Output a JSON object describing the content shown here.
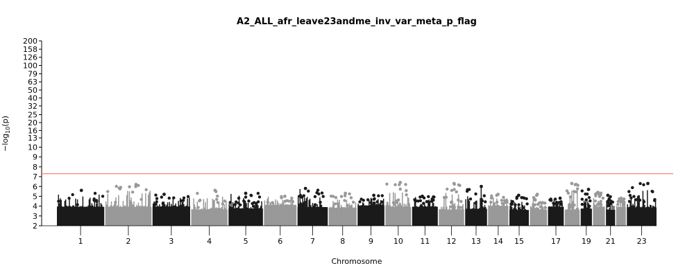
{
  "chart_data": {
    "type": "scatter",
    "title": "A2_ALL_afr_leave23andme_inv_var_meta_p_flag",
    "xlabel": "Chromosome",
    "ylabel": "−log10(p)",
    "ylabel_main": "−log",
    "ylabel_sub": "10",
    "ylabel_tail": "(p)",
    "y_scale": "piecewise: linear 2–10, log-like 10–200",
    "y_ticks": [
      "2",
      "3",
      "4",
      "5",
      "6",
      "7",
      "8",
      "9",
      "10",
      "13",
      "16",
      "20",
      "25",
      "32",
      "40",
      "50",
      "63",
      "79",
      "100",
      "126",
      "158",
      "200"
    ],
    "ylim": [
      2,
      200
    ],
    "grid": false,
    "significance_line": {
      "value": 7.3,
      "color": "#ff6b6b"
    },
    "colors": {
      "odd_chromosome": "#1a1a1a",
      "even_chromosome": "#999999",
      "line": "#ff6b6b"
    },
    "chromosome_tick_labels": [
      "1",
      "2",
      "3",
      "4",
      "5",
      "6",
      "7",
      "8",
      "9",
      "10",
      "11",
      "12",
      "13",
      "14",
      "15",
      "17",
      "19",
      "21",
      "23"
    ],
    "chromosomes": [
      {
        "chr": "1",
        "color": "odd",
        "peak": 5.6,
        "labeled": true
      },
      {
        "chr": "2",
        "color": "even",
        "peak": 6.2,
        "labeled": true
      },
      {
        "chr": "3",
        "color": "odd",
        "peak": 5.2,
        "labeled": true
      },
      {
        "chr": "4",
        "color": "even",
        "peak": 5.6,
        "labeled": true
      },
      {
        "chr": "5",
        "color": "odd",
        "peak": 5.3,
        "labeled": true
      },
      {
        "chr": "6",
        "color": "even",
        "peak": 5.0,
        "labeled": true
      },
      {
        "chr": "7",
        "color": "odd",
        "peak": 5.8,
        "labeled": true
      },
      {
        "chr": "8",
        "color": "even",
        "peak": 5.3,
        "labeled": true
      },
      {
        "chr": "9",
        "color": "odd",
        "peak": 5.1,
        "labeled": true
      },
      {
        "chr": "10",
        "color": "even",
        "peak": 6.4,
        "labeled": true
      },
      {
        "chr": "11",
        "color": "odd",
        "peak": 5.0,
        "labeled": true
      },
      {
        "chr": "12",
        "color": "even",
        "peak": 6.3,
        "labeled": true
      },
      {
        "chr": "13",
        "color": "odd",
        "peak": 6.0,
        "labeled": true
      },
      {
        "chr": "14",
        "color": "even",
        "peak": 5.2,
        "labeled": true
      },
      {
        "chr": "15",
        "color": "odd",
        "peak": 5.1,
        "labeled": true
      },
      {
        "chr": "16",
        "color": "even",
        "peak": 5.2,
        "labeled": false
      },
      {
        "chr": "17",
        "color": "odd",
        "peak": 4.8,
        "labeled": true
      },
      {
        "chr": "18",
        "color": "even",
        "peak": 6.3,
        "labeled": false
      },
      {
        "chr": "19",
        "color": "odd",
        "peak": 5.7,
        "labeled": true
      },
      {
        "chr": "20",
        "color": "even",
        "peak": 5.4,
        "labeled": false
      },
      {
        "chr": "21",
        "color": "odd",
        "peak": 5.1,
        "labeled": true
      },
      {
        "chr": "22",
        "color": "even",
        "peak": 4.8,
        "labeled": false
      },
      {
        "chr": "23",
        "color": "odd",
        "peak": 6.3,
        "labeled": true
      }
    ]
  }
}
